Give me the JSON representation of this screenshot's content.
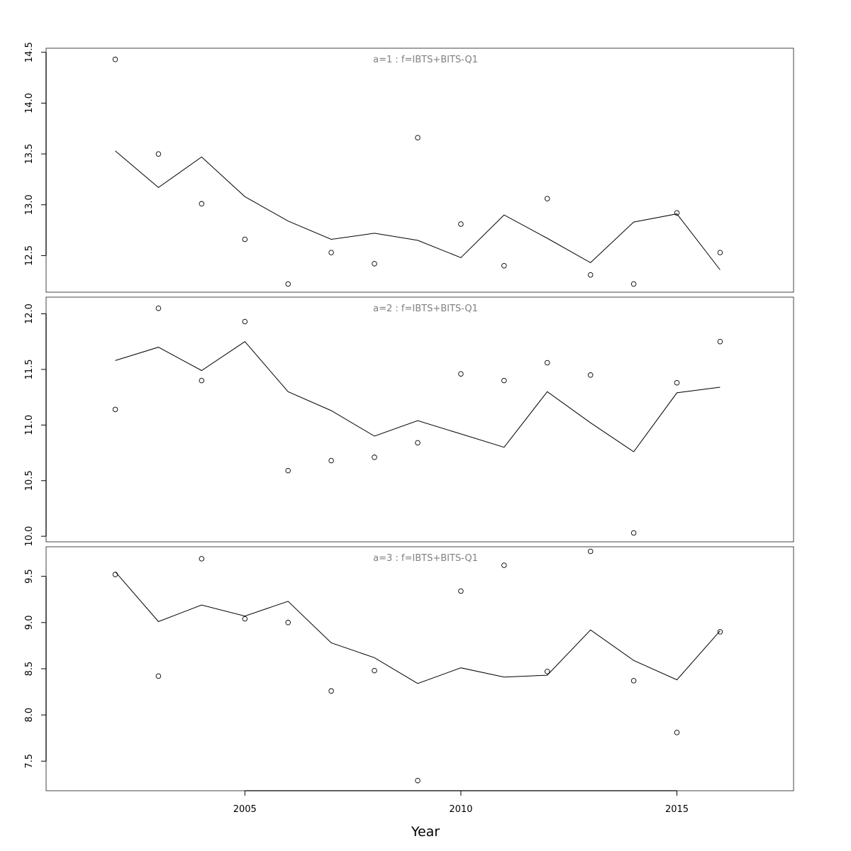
{
  "chart_data": {
    "type": "line",
    "xlabel": "Year",
    "x_ticks": [
      2005,
      2010,
      2015
    ],
    "xlim": [
      2000.4,
      2017.7
    ],
    "years": [
      2002,
      2003,
      2004,
      2005,
      2006,
      2007,
      2008,
      2009,
      2010,
      2011,
      2012,
      2013,
      2014,
      2015,
      2016
    ],
    "panels": [
      {
        "title": "a=1  :  f=IBTS+BITS-Q1",
        "ylim": [
          12.14,
          14.54
        ],
        "y_ticks": [
          "12.5",
          "13.0",
          "13.5",
          "14.0",
          "14.5"
        ],
        "series": [
          {
            "kind": "observed",
            "style": "points",
            "values": [
              14.43,
              13.5,
              13.01,
              12.66,
              12.22,
              12.53,
              12.42,
              13.66,
              12.81,
              12.4,
              13.06,
              12.31,
              12.22,
              12.92,
              12.53
            ]
          },
          {
            "kind": "fitted",
            "style": "line",
            "values": [
              13.53,
              13.17,
              13.47,
              13.08,
              12.84,
              12.66,
              12.72,
              12.65,
              12.48,
              12.9,
              12.67,
              12.43,
              12.83,
              12.91,
              12.36
            ]
          }
        ]
      },
      {
        "title": "a=2  :  f=IBTS+BITS-Q1",
        "ylim": [
          9.95,
          12.15
        ],
        "y_ticks": [
          "10.0",
          "10.5",
          "11.0",
          "11.5",
          "12.0"
        ],
        "series": [
          {
            "kind": "observed",
            "style": "points",
            "values": [
              11.14,
              12.05,
              11.4,
              11.93,
              10.59,
              10.68,
              10.71,
              10.84,
              11.46,
              11.4,
              11.56,
              11.45,
              10.03,
              11.38,
              11.75
            ]
          },
          {
            "kind": "fitted",
            "style": "line",
            "values": [
              11.58,
              11.7,
              11.49,
              11.75,
              11.3,
              11.13,
              10.9,
              11.04,
              10.92,
              10.8,
              11.3,
              11.02,
              10.76,
              11.29,
              11.34
            ]
          }
        ]
      },
      {
        "title": "a=3  :  f=IBTS+BITS-Q1",
        "ylim": [
          7.18,
          9.82
        ],
        "y_ticks": [
          "7.5",
          "8.0",
          "8.5",
          "9.0",
          "9.5"
        ],
        "series": [
          {
            "kind": "observed",
            "style": "points",
            "values": [
              9.52,
              8.42,
              9.69,
              9.04,
              9.0,
              8.26,
              8.48,
              7.29,
              9.34,
              9.62,
              8.47,
              9.77,
              8.37,
              7.81,
              8.9
            ]
          },
          {
            "kind": "fitted",
            "style": "line",
            "values": [
              9.55,
              9.01,
              9.19,
              9.07,
              9.23,
              8.78,
              8.62,
              8.34,
              8.51,
              8.41,
              8.43,
              8.92,
              8.59,
              8.38,
              8.91
            ]
          }
        ]
      }
    ]
  }
}
